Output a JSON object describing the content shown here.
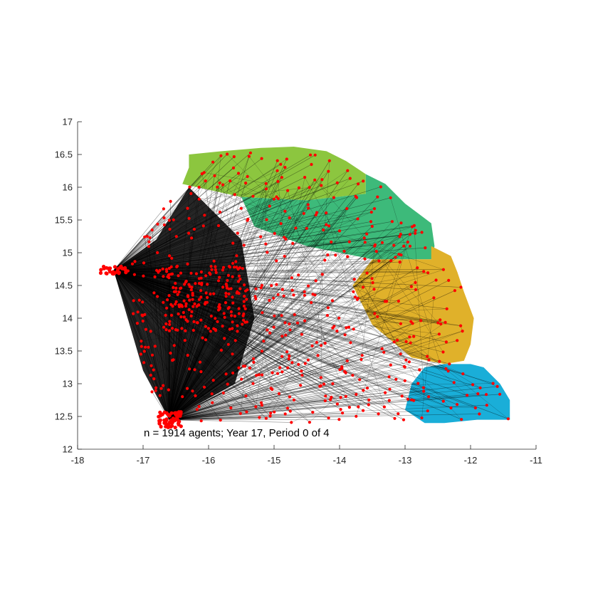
{
  "chart_data": {
    "type": "scatter",
    "title": "",
    "xlabel": "",
    "ylabel": "",
    "xlim": [
      -18,
      -11
    ],
    "ylim": [
      12,
      17
    ],
    "x_ticks": [
      -18,
      -17,
      -16,
      -15,
      -14,
      -13,
      -12,
      -11
    ],
    "y_ticks": [
      12,
      12.5,
      13,
      13.5,
      14,
      14.5,
      15,
      15.5,
      16,
      16.5,
      17
    ],
    "x_tick_labels": [
      "-18",
      "-17",
      "-16",
      "-15",
      "-14",
      "-13",
      "-12",
      "-11"
    ],
    "y_tick_labels": [
      "12",
      "12.5",
      "13",
      "13.5",
      "14",
      "14.5",
      "15",
      "15.5",
      "16",
      "16.5",
      "17"
    ],
    "grid": false,
    "annotation": "n = 1914 agents; Year 17, Period 0 of 4",
    "agent_count": 1914,
    "point_color": "#ff0000",
    "edge_color": "#000000",
    "hubs": [
      {
        "label": "",
        "x": -17.45,
        "y": 14.73
      },
      {
        "label": "",
        "x": -16.6,
        "y": 12.45
      }
    ],
    "regions": [
      {
        "color": "#8cc63f",
        "polygon": [
          [
            -16.3,
            16.3
          ],
          [
            -16.3,
            16.5
          ],
          [
            -15.8,
            16.55
          ],
          [
            -15.2,
            16.6
          ],
          [
            -14.7,
            16.62
          ],
          [
            -14.2,
            16.55
          ],
          [
            -13.9,
            16.4
          ],
          [
            -13.6,
            16.2
          ],
          [
            -13.6,
            15.9
          ],
          [
            -14.5,
            15.8
          ],
          [
            -15.5,
            15.85
          ],
          [
            -16.4,
            16.05
          ]
        ]
      },
      {
        "color": "#3dba7a",
        "polygon": [
          [
            -13.6,
            16.2
          ],
          [
            -13.3,
            16.05
          ],
          [
            -13.0,
            15.75
          ],
          [
            -12.8,
            15.6
          ],
          [
            -12.6,
            15.45
          ],
          [
            -12.55,
            15.1
          ],
          [
            -12.6,
            14.9
          ],
          [
            -13.5,
            14.9
          ],
          [
            -14.5,
            15.1
          ],
          [
            -15.3,
            15.4
          ],
          [
            -15.5,
            15.85
          ],
          [
            -14.5,
            15.8
          ],
          [
            -13.6,
            15.9
          ]
        ]
      },
      {
        "color": "#e0b12a",
        "polygon": [
          [
            -12.6,
            15.1
          ],
          [
            -12.3,
            14.95
          ],
          [
            -12.2,
            14.7
          ],
          [
            -12.1,
            14.4
          ],
          [
            -11.95,
            14.0
          ],
          [
            -12.0,
            13.6
          ],
          [
            -12.1,
            13.35
          ],
          [
            -12.4,
            13.3
          ],
          [
            -12.9,
            13.4
          ],
          [
            -13.5,
            13.9
          ],
          [
            -13.8,
            14.5
          ],
          [
            -13.5,
            14.9
          ],
          [
            -12.6,
            14.9
          ]
        ]
      },
      {
        "color": "#1aaed8",
        "polygon": [
          [
            -12.4,
            13.3
          ],
          [
            -12.0,
            13.3
          ],
          [
            -11.8,
            13.25
          ],
          [
            -11.55,
            13.0
          ],
          [
            -11.4,
            12.75
          ],
          [
            -11.4,
            12.45
          ],
          [
            -11.9,
            12.45
          ],
          [
            -12.4,
            12.4
          ],
          [
            -12.7,
            12.4
          ],
          [
            -13.0,
            12.6
          ],
          [
            -12.9,
            13.0
          ],
          [
            -12.7,
            13.25
          ]
        ]
      }
    ]
  }
}
